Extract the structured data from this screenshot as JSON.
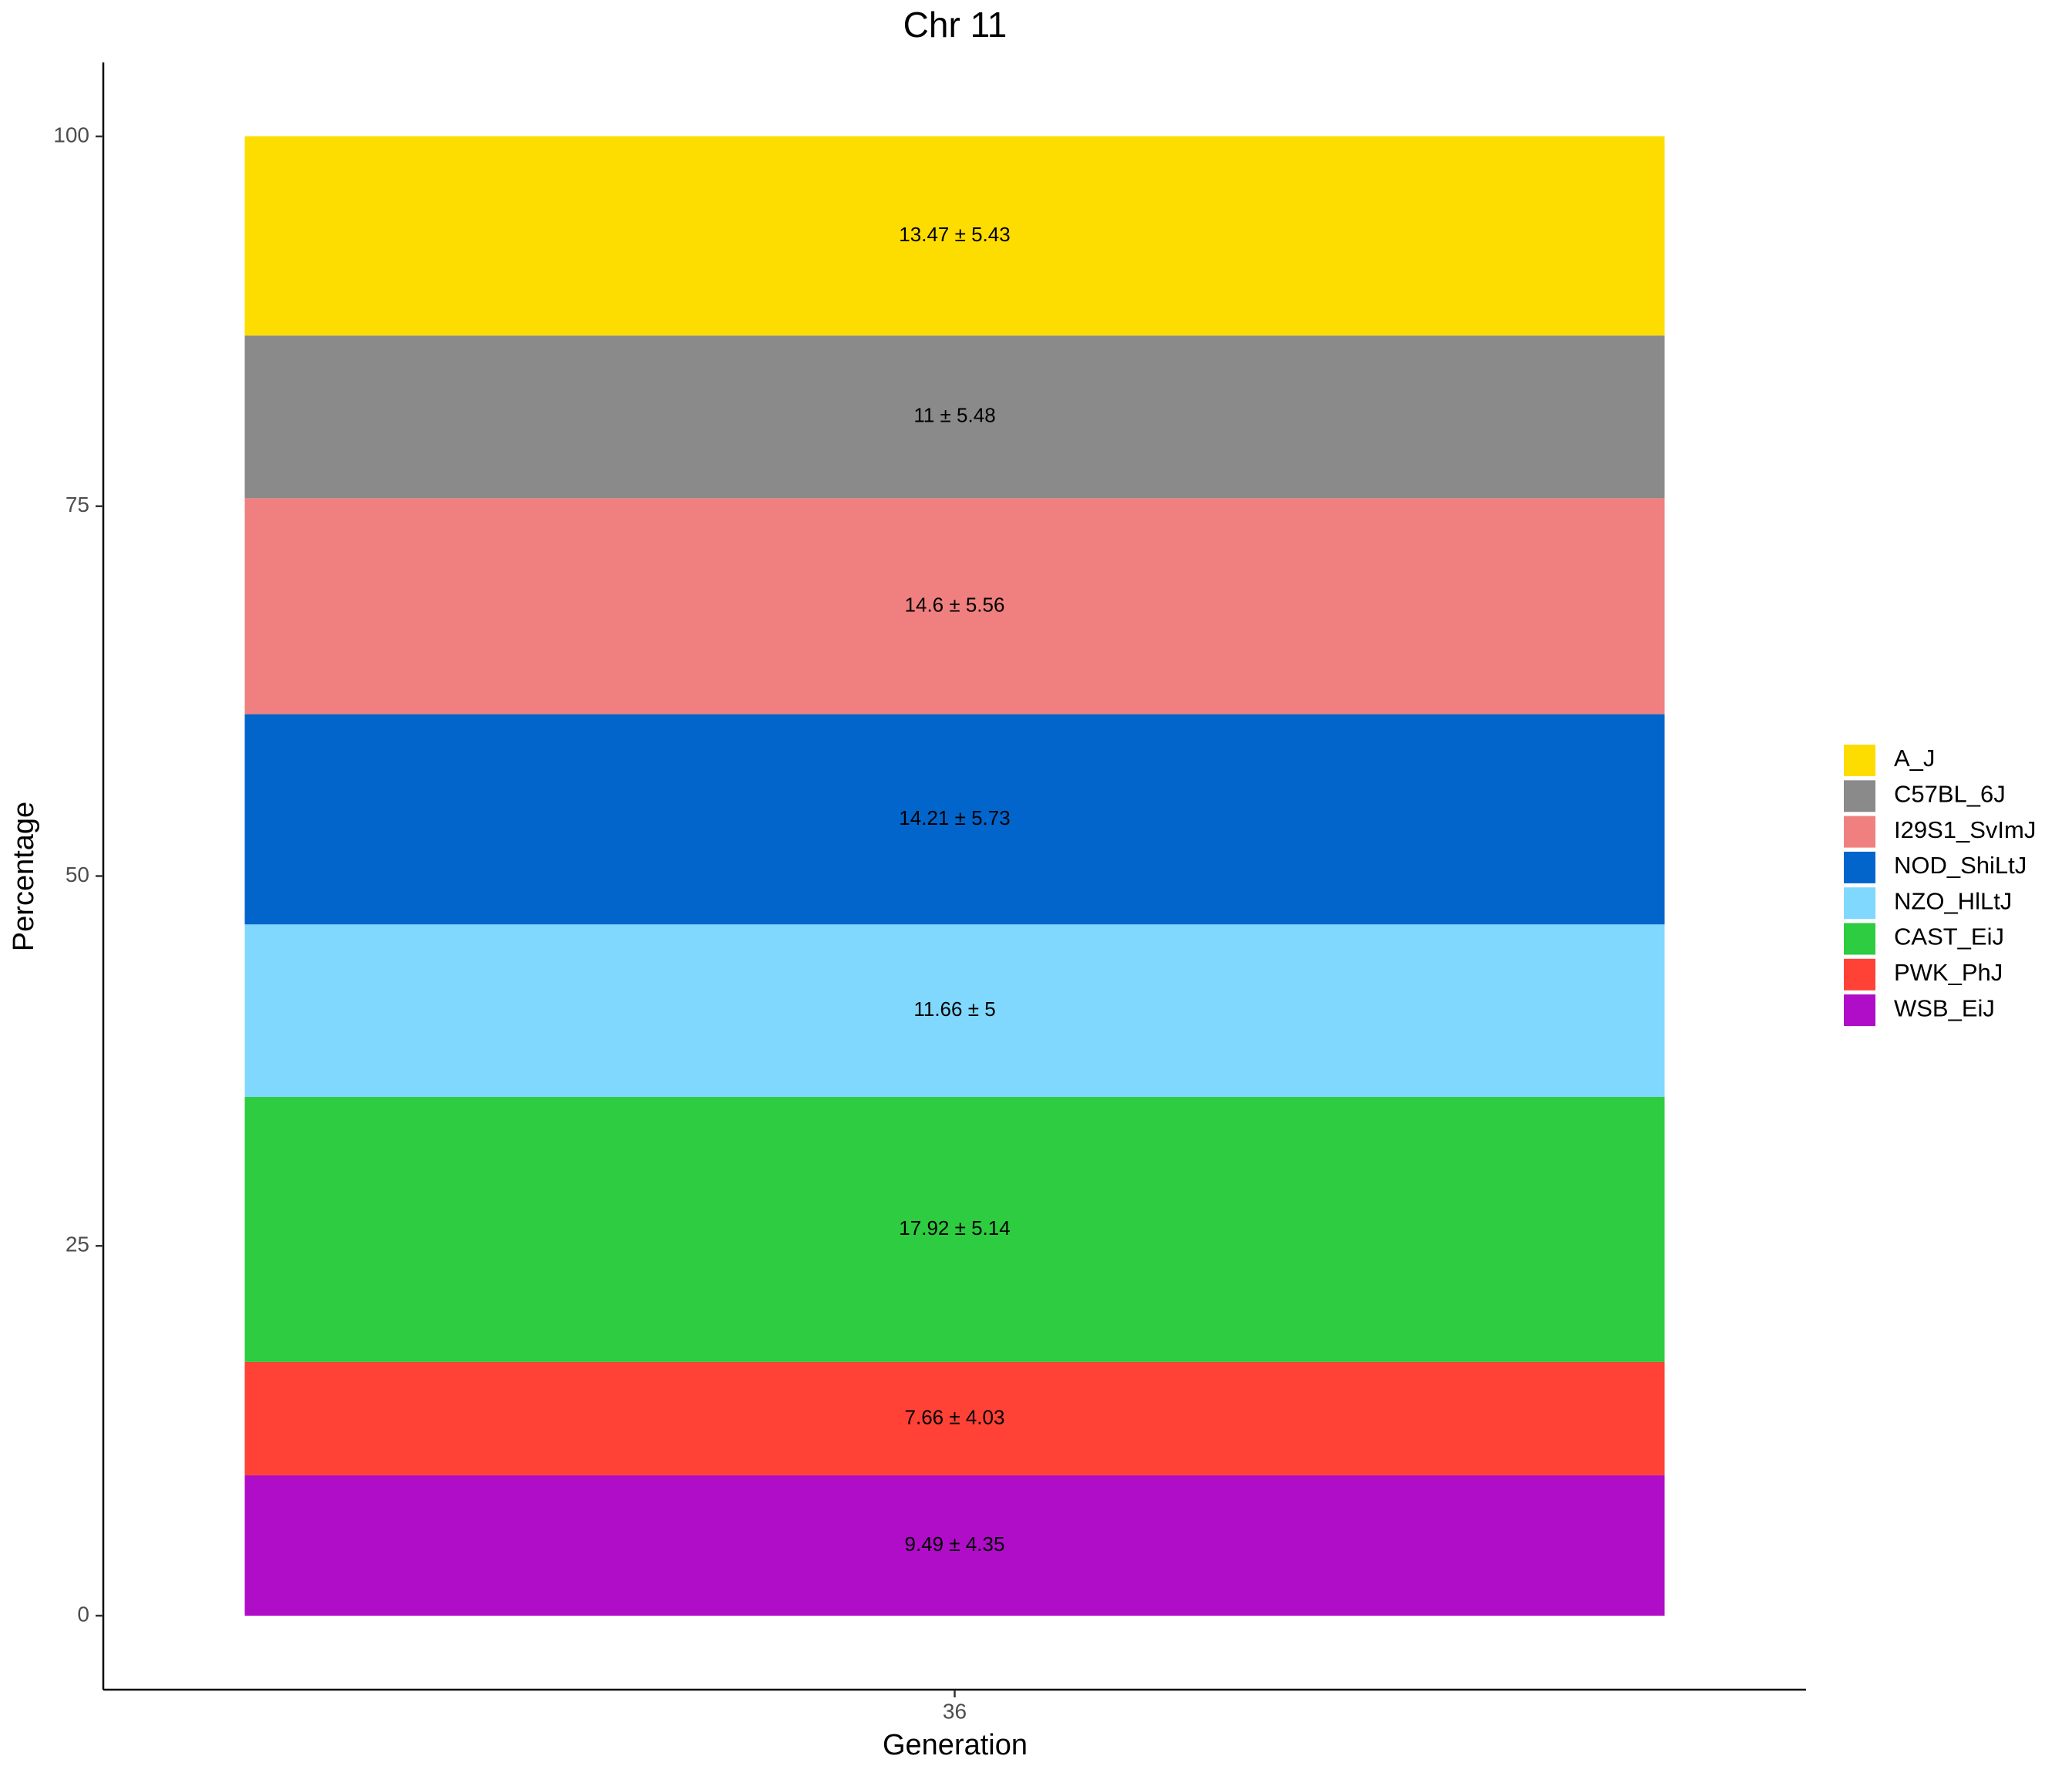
{
  "chart_data": {
    "type": "stacked_bar",
    "title": "Chr 11",
    "x_label": "Generation",
    "y_label": "Percentage",
    "categories": [
      "36"
    ],
    "series": [
      {
        "name": "A_J",
        "color": "#FDDC00",
        "values": [
          13.47
        ],
        "value_labels": [
          "13.47 ± 5.43"
        ]
      },
      {
        "name": "C57BL_6J",
        "color": "#8A8A8A",
        "values": [
          11
        ],
        "value_labels": [
          "11 ± 5.48"
        ]
      },
      {
        "name": "I29S1_SvImJ",
        "color": "#F08080",
        "values": [
          14.6
        ],
        "value_labels": [
          "14.6 ± 5.56"
        ]
      },
      {
        "name": "NOD_ShiLtJ",
        "color": "#0265CC",
        "values": [
          14.21
        ],
        "value_labels": [
          "14.21 ± 5.73"
        ]
      },
      {
        "name": "NZO_HlLtJ",
        "color": "#80D8FE",
        "values": [
          11.66
        ],
        "value_labels": [
          "11.66 ± 5"
        ]
      },
      {
        "name": "CAST_EiJ",
        "color": "#2ECC40",
        "values": [
          17.92
        ],
        "value_labels": [
          "17.92 ± 5.14"
        ]
      },
      {
        "name": "PWK_PhJ",
        "color": "#FF4136",
        "values": [
          7.66
        ],
        "value_labels": [
          "7.66 ± 4.03"
        ]
      },
      {
        "name": "WSB_EiJ",
        "color": "#B00DC9",
        "values": [
          9.49
        ],
        "value_labels": [
          "9.49 ± 4.35"
        ]
      }
    ],
    "ylim": [
      -5,
      105
    ],
    "yticks": [
      0,
      25,
      50,
      75,
      100
    ],
    "grid": false,
    "legend": "right"
  }
}
